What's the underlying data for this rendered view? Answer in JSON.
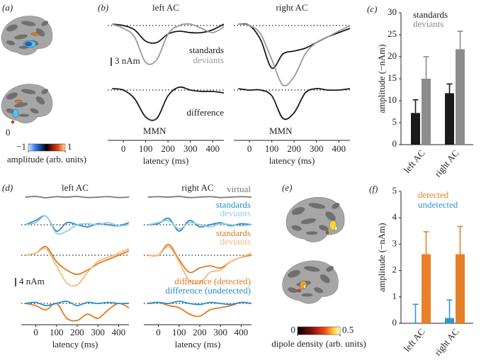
{
  "chart_data": [
    {
      "type": "brain-map",
      "label": "(a)",
      "annotation": "0",
      "colorbar": {
        "lim": [
          -1,
          1
        ],
        "ticks": [
          {
            "value": -1,
            "label": "−1"
          },
          1
        ],
        "label": "amplitude (arb. units)"
      }
    },
    {
      "type": "waveform",
      "label": "(b)",
      "x": [
        -50,
        0,
        50,
        100,
        150,
        200,
        250,
        300,
        350,
        400,
        450
      ],
      "xlim": [
        -70,
        450
      ],
      "xticks": [
        0,
        100,
        200,
        300,
        400
      ],
      "xlabel": "latency (ms)",
      "scale_bar": {
        "value": 3,
        "label": "3 nAm"
      },
      "panels": [
        {
          "title": "left AC",
          "rows": [
            {
              "series": [
                {
                  "name": "standards",
                  "color": "#1a1a1a",
                  "values": [
                    0.5,
                    0,
                    -1.5,
                    -5.5,
                    -6,
                    -3,
                    -2,
                    -2.5,
                    -2.5,
                    -1.5,
                    0.5
                  ]
                },
                {
                  "name": "deviants",
                  "color": "#999999",
                  "values": [
                    0.5,
                    -1,
                    -4,
                    -13,
                    -12,
                    -3,
                    0,
                    0.5,
                    -1,
                    -2.5,
                    -0.5
                  ]
                }
              ]
            },
            {
              "annotation": "MMN",
              "series": [
                {
                  "name": "difference",
                  "color": "#1a1a1a",
                  "values": [
                    0.5,
                    0,
                    -3,
                    -9.5,
                    -10,
                    -2,
                    1,
                    0,
                    -0.5,
                    -0.5,
                    -1
                  ]
                }
              ]
            }
          ]
        },
        {
          "title": "right AC",
          "rows": [
            {
              "series": [
                {
                  "color": "#1a1a1a",
                  "values": [
                    0.5,
                    0,
                    -5,
                    -15,
                    -10,
                    -9,
                    -8,
                    -6,
                    -4,
                    -2.5,
                    -1
                  ]
                },
                {
                  "color": "#999999",
                  "values": [
                    0.5,
                    0,
                    -3,
                    -12,
                    -21,
                    -18,
                    -10,
                    -6,
                    -4,
                    -2,
                    0
                  ]
                }
              ]
            },
            {
              "annotation": "MMN",
              "series": [
                {
                  "color": "#1a1a1a",
                  "values": [
                    0.5,
                    0,
                    0,
                    -2,
                    -10,
                    -8,
                    -1,
                    0.5,
                    0,
                    0,
                    0.5
                  ]
                }
              ]
            }
          ]
        }
      ]
    },
    {
      "type": "bar",
      "label": "(c)",
      "categories": [
        "left AC",
        "right AC"
      ],
      "ylabel": "amplitude (−nAm)",
      "ylim": [
        0,
        30
      ],
      "yticks": [
        0,
        5,
        10,
        15,
        20,
        25,
        30
      ],
      "series": [
        {
          "name": "standards",
          "color": "#1a1a1a",
          "values": [
            7.2,
            11.7
          ],
          "errors": [
            3,
            2.1
          ]
        },
        {
          "name": "deviants",
          "color": "#8c8c8c",
          "values": [
            15,
            21.7
          ],
          "errors": [
            5,
            4.1
          ]
        }
      ]
    },
    {
      "type": "waveform",
      "label": "(d)",
      "x": [
        -50,
        0,
        50,
        100,
        150,
        200,
        250,
        300,
        350,
        400,
        450
      ],
      "xlim": [
        -70,
        450
      ],
      "xticks": [
        0,
        100,
        200,
        300,
        400
      ],
      "xlabel": "latency (ms)",
      "scale_bar": {
        "value": 4,
        "label": "4 nAm"
      },
      "panels": [
        {
          "title": "left AC",
          "rows": [
            {
              "zero_line": false,
              "series": [
                {
                  "color": "#777777",
                  "values": [
                    0,
                    0.3,
                    -0.3,
                    0.2,
                    0,
                    0.3,
                    -0.2,
                    0,
                    0.2,
                    -0.2,
                    0
                  ]
                }
              ]
            },
            {
              "series": [
                {
                  "color": "#2a8fc8",
                  "values": [
                    0,
                    2,
                    4,
                    -3,
                    1,
                    0,
                    -1,
                    0.5,
                    0,
                    -0.5,
                    1
                  ]
                },
                {
                  "color": "#93cbe8",
                  "values": [
                    0,
                    1,
                    4,
                    -4,
                    -3,
                    0,
                    0.5,
                    0,
                    1,
                    -0.5,
                    0
                  ]
                }
              ]
            },
            {
              "series": [
                {
                  "color": "#e07b24",
                  "values": [
                    0,
                    1,
                    4,
                    -3,
                    -7,
                    -9,
                    -7,
                    -4,
                    -2,
                    0,
                    2
                  ]
                },
                {
                  "color": "#f5b97d",
                  "values": [
                    0,
                    1,
                    3,
                    -5,
                    -13,
                    -14,
                    -8,
                    -3,
                    -1,
                    1,
                    3
                  ]
                }
              ]
            },
            {
              "series": [
                {
                  "color": "#e07b24",
                  "values": [
                    0,
                    -1,
                    -3,
                    0,
                    -7,
                    -8,
                    -5,
                    -7,
                    -3,
                    0,
                    -2
                  ]
                },
                {
                  "color": "#2a8fc8",
                  "values": [
                    0,
                    0.5,
                    -1,
                    0,
                    1,
                    -1,
                    0.5,
                    0,
                    0.5,
                    0,
                    0
                  ]
                }
              ]
            }
          ]
        },
        {
          "title": "right AC",
          "rows": [
            {
              "zero_line": false,
              "series": [
                {
                  "name": "virtual",
                  "color": "#777777",
                  "values": [
                    0,
                    0.2,
                    0,
                    0.3,
                    -0.2,
                    0,
                    0.2,
                    -0.2,
                    0,
                    0.2,
                    0
                  ]
                }
              ]
            },
            {
              "series": [
                {
                  "name": "standards",
                  "color": "#2a8fc8",
                  "values": [
                    0,
                    0.5,
                    3,
                    -3,
                    2,
                    -1,
                    0,
                    1,
                    -0.5,
                    0.5,
                    0
                  ]
                },
                {
                  "name": "deviants",
                  "color": "#93cbe8",
                  "values": [
                    0,
                    1,
                    2,
                    -2,
                    1,
                    0,
                    -1,
                    0.5,
                    0,
                    -0.5,
                    0
                  ]
                }
              ]
            },
            {
              "series": [
                {
                  "name": "standards",
                  "color": "#e07b24",
                  "values": [
                    0,
                    0,
                    5,
                    -2,
                    -8,
                    -6,
                    -5,
                    -6,
                    -3,
                    -1,
                    0
                  ]
                },
                {
                  "name": "deviants",
                  "color": "#f5b97d",
                  "values": [
                    0,
                    0,
                    4,
                    -3,
                    -12,
                    -13,
                    -8,
                    -7,
                    -3,
                    -1,
                    1
                  ]
                }
              ]
            },
            {
              "series": [
                {
                  "name": "difference (detected)",
                  "color": "#e07b24",
                  "values": [
                    0,
                    0.5,
                    -1,
                    -2,
                    -5,
                    -6,
                    -3,
                    -2,
                    -1,
                    0.5,
                    0
                  ]
                },
                {
                  "name": "difference (undetected)",
                  "color": "#2a8fc8",
                  "values": [
                    0,
                    0.5,
                    0,
                    1,
                    0,
                    -0.5,
                    0.5,
                    0,
                    -0.5,
                    0.5,
                    0
                  ]
                }
              ]
            }
          ]
        }
      ]
    },
    {
      "type": "brain-map",
      "label": "(e)",
      "colorbar": {
        "lim": [
          0,
          0.5
        ],
        "ticks": [
          0,
          0.5
        ],
        "label": "dipole density (arb. units)"
      }
    },
    {
      "type": "bar",
      "label": "(f)",
      "categories": [
        "left AC",
        "right AC"
      ],
      "ylabel": "amplitude (−nAm)",
      "ylim": [
        0,
        5
      ],
      "yticks": [
        0,
        1,
        2,
        3,
        4,
        5
      ],
      "series": [
        {
          "name": "detected",
          "color": "#e8802a",
          "values": [
            2.62,
            2.62
          ],
          "errors": [
            0.85,
            1.05
          ]
        },
        {
          "name": "undetected",
          "color": "#2f97cf",
          "values": [
            0,
            0.2
          ],
          "errors": [
            0.72,
            0.68
          ]
        }
      ]
    }
  ]
}
